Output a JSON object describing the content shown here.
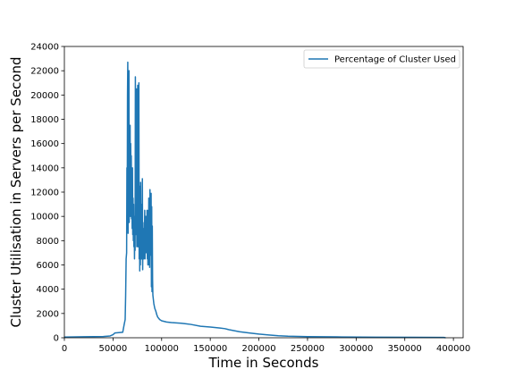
{
  "chart_data": {
    "type": "line",
    "title": "",
    "xlabel": "Time in Seconds",
    "ylabel": "Cluster Utilisation in Servers per Second",
    "xlim": [
      0,
      410000
    ],
    "ylim": [
      0,
      24000
    ],
    "xticks": [
      0,
      50000,
      100000,
      150000,
      200000,
      250000,
      300000,
      350000,
      400000
    ],
    "yticks": [
      0,
      2000,
      4000,
      6000,
      8000,
      10000,
      12000,
      14000,
      16000,
      18000,
      20000,
      22000,
      24000
    ],
    "grid": false,
    "legend_position": "top-right",
    "line_color": "#1f77b4",
    "series": [
      {
        "name": "Percentage of Cluster Used",
        "points": [
          [
            0,
            60
          ],
          [
            20000,
            80
          ],
          [
            40000,
            100
          ],
          [
            47000,
            150
          ],
          [
            50000,
            250
          ],
          [
            52000,
            400
          ],
          [
            60000,
            450
          ],
          [
            61500,
            1100
          ],
          [
            62500,
            1500
          ],
          [
            63000,
            3500
          ],
          [
            63500,
            6500
          ],
          [
            64000,
            7000
          ],
          [
            64300,
            14000
          ],
          [
            64600,
            9000
          ],
          [
            64900,
            20000
          ],
          [
            65200,
            22700
          ],
          [
            65500,
            8600
          ],
          [
            65800,
            19000
          ],
          [
            66100,
            12000
          ],
          [
            66400,
            22000
          ],
          [
            66700,
            9500
          ],
          [
            67000,
            16500
          ],
          [
            67300,
            12000
          ],
          [
            67600,
            17500
          ],
          [
            67900,
            10000
          ],
          [
            68200,
            16000
          ],
          [
            68500,
            11500
          ],
          [
            68800,
            15000
          ],
          [
            69100,
            9800
          ],
          [
            69400,
            12000
          ],
          [
            69700,
            9000
          ],
          [
            70000,
            14000
          ],
          [
            70300,
            8500
          ],
          [
            70600,
            11500
          ],
          [
            70900,
            8000
          ],
          [
            71200,
            11000
          ],
          [
            71500,
            7500
          ],
          [
            71800,
            10000
          ],
          [
            72100,
            6500
          ],
          [
            72400,
            9000
          ],
          [
            72700,
            7200
          ],
          [
            73000,
            21500
          ],
          [
            73300,
            8500
          ],
          [
            73600,
            17000
          ],
          [
            73900,
            9000
          ],
          [
            74200,
            20500
          ],
          [
            74500,
            7500
          ],
          [
            74800,
            12000
          ],
          [
            75100,
            8000
          ],
          [
            75400,
            20800
          ],
          [
            75700,
            7500
          ],
          [
            76000,
            17000
          ],
          [
            76300,
            8000
          ],
          [
            76600,
            21000
          ],
          [
            76900,
            6500
          ],
          [
            77200,
            12500
          ],
          [
            77500,
            5500
          ],
          [
            77800,
            11800
          ],
          [
            78100,
            6000
          ],
          [
            78400,
            12800
          ],
          [
            78700,
            7000
          ],
          [
            79000,
            10000
          ],
          [
            79300,
            6500
          ],
          [
            79600,
            11000
          ],
          [
            79900,
            8000
          ],
          [
            80200,
            13100
          ],
          [
            80500,
            5600
          ],
          [
            80800,
            9500
          ],
          [
            81100,
            7000
          ],
          [
            81400,
            9000
          ],
          [
            81700,
            6500
          ],
          [
            82000,
            8500
          ],
          [
            82300,
            7500
          ],
          [
            82600,
            10500
          ],
          [
            82900,
            6500
          ],
          [
            83200,
            9000
          ],
          [
            83500,
            7500
          ],
          [
            83800,
            10000
          ],
          [
            84100,
            7000
          ],
          [
            84400,
            9000
          ],
          [
            84700,
            7000
          ],
          [
            85000,
            10500
          ],
          [
            85300,
            6500
          ],
          [
            85600,
            9500
          ],
          [
            85900,
            6000
          ],
          [
            86200,
            10500
          ],
          [
            86500,
            7000
          ],
          [
            86800,
            11500
          ],
          [
            87100,
            6000
          ],
          [
            87400,
            9500
          ],
          [
            87700,
            5800
          ],
          [
            88000,
            12200
          ],
          [
            88300,
            7000
          ],
          [
            88600,
            11200
          ],
          [
            88900,
            6800
          ],
          [
            89200,
            11900
          ],
          [
            89500,
            4200
          ],
          [
            89800,
            10800
          ],
          [
            90100,
            3800
          ],
          [
            90400,
            9200
          ],
          [
            90700,
            4800
          ],
          [
            91000,
            3500
          ],
          [
            92000,
            2800
          ],
          [
            93000,
            2400
          ],
          [
            94000,
            2200
          ],
          [
            95000,
            1900
          ],
          [
            96000,
            1700
          ],
          [
            98000,
            1500
          ],
          [
            100000,
            1400
          ],
          [
            105000,
            1300
          ],
          [
            110000,
            1250
          ],
          [
            120000,
            1200
          ],
          [
            125000,
            1150
          ],
          [
            130000,
            1100
          ],
          [
            140000,
            950
          ],
          [
            150000,
            880
          ],
          [
            160000,
            800
          ],
          [
            165000,
            750
          ],
          [
            170000,
            650
          ],
          [
            180000,
            500
          ],
          [
            190000,
            400
          ],
          [
            200000,
            300
          ],
          [
            210000,
            230
          ],
          [
            220000,
            170
          ],
          [
            230000,
            130
          ],
          [
            240000,
            110
          ],
          [
            250000,
            90
          ],
          [
            280000,
            70
          ],
          [
            320000,
            50
          ],
          [
            360000,
            40
          ],
          [
            390000,
            30
          ],
          [
            392000,
            0
          ]
        ]
      }
    ]
  }
}
